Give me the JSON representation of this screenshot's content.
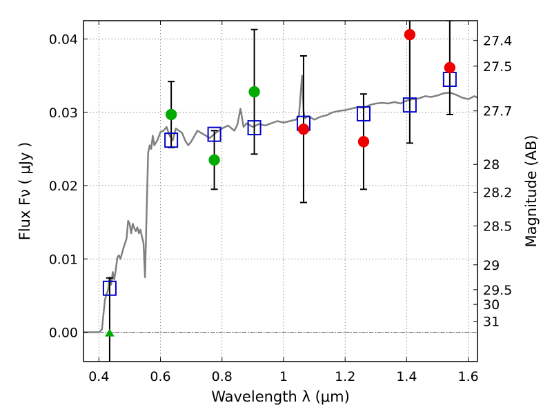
{
  "chart_data": {
    "type": "scatter",
    "title": "",
    "xlabel": "Wavelength  λ (μm)",
    "ylabel": "Flux  Fν  ( μJy )",
    "ylabel_right": "Magnitude (AB)",
    "xlim": [
      0.35,
      1.63
    ],
    "ylim": [
      -0.004,
      0.0425
    ],
    "grid": true,
    "x_ticks": [
      0.4,
      0.6,
      0.8,
      1.0,
      1.2,
      1.4,
      1.6
    ],
    "x_tick_labels": [
      "0.4",
      "0.6",
      "0.8",
      "1",
      "1.2",
      "1.4",
      "1.6"
    ],
    "y_ticks": [
      0.0,
      0.01,
      0.02,
      0.03,
      0.04
    ],
    "y_tick_labels": [
      "0.00",
      "0.01",
      "0.02",
      "0.03",
      "0.04"
    ],
    "mag_ticks": [
      {
        "label": "27.4",
        "flux": 0.0398
      },
      {
        "label": "27.5",
        "flux": 0.0363
      },
      {
        "label": "27.7",
        "flux": 0.0302
      },
      {
        "label": "28",
        "flux": 0.0229
      },
      {
        "label": "28.2",
        "flux": 0.0191
      },
      {
        "label": "28.5",
        "flux": 0.0145
      },
      {
        "label": "29",
        "flux": 0.0092
      },
      {
        "label": "29.5",
        "flux": 0.0058
      },
      {
        "label": "30",
        "flux": 0.0038
      },
      {
        "label": "31",
        "flux": 0.0015
      }
    ],
    "zero_line": 0.0,
    "sed_template": {
      "color": "#808080",
      "x": [
        0.35,
        0.4,
        0.41,
        0.415,
        0.42,
        0.43,
        0.435,
        0.44,
        0.445,
        0.45,
        0.455,
        0.46,
        0.465,
        0.47,
        0.48,
        0.49,
        0.495,
        0.5,
        0.505,
        0.51,
        0.515,
        0.52,
        0.525,
        0.53,
        0.535,
        0.54,
        0.545,
        0.55,
        0.555,
        0.56,
        0.565,
        0.57,
        0.575,
        0.58,
        0.59,
        0.6,
        0.61,
        0.62,
        0.63,
        0.64,
        0.65,
        0.66,
        0.67,
        0.68,
        0.69,
        0.7,
        0.72,
        0.74,
        0.76,
        0.78,
        0.8,
        0.82,
        0.84,
        0.85,
        0.86,
        0.87,
        0.88,
        0.9,
        0.92,
        0.94,
        0.96,
        0.98,
        1.0,
        1.02,
        1.04,
        1.05,
        1.06,
        1.065,
        1.07,
        1.08,
        1.1,
        1.12,
        1.14,
        1.16,
        1.18,
        1.2,
        1.22,
        1.24,
        1.26,
        1.28,
        1.3,
        1.32,
        1.34,
        1.36,
        1.38,
        1.4,
        1.42,
        1.44,
        1.46,
        1.48,
        1.5,
        1.52,
        1.54,
        1.56,
        1.58,
        1.6,
        1.62,
        1.63
      ],
      "y": [
        0.0,
        0.0,
        0.0004,
        0.0025,
        0.0045,
        0.0058,
        0.0075,
        0.0065,
        0.0082,
        0.0072,
        0.0085,
        0.0102,
        0.0105,
        0.01,
        0.0115,
        0.0128,
        0.0152,
        0.0148,
        0.0135,
        0.0148,
        0.0142,
        0.0138,
        0.0143,
        0.0135,
        0.014,
        0.013,
        0.0122,
        0.0075,
        0.016,
        0.0245,
        0.0255,
        0.025,
        0.0268,
        0.0255,
        0.0262,
        0.0273,
        0.0275,
        0.028,
        0.0268,
        0.0262,
        0.0278,
        0.0275,
        0.0272,
        0.0262,
        0.0255,
        0.026,
        0.0275,
        0.027,
        0.0265,
        0.0272,
        0.0278,
        0.0282,
        0.0275,
        0.0283,
        0.0305,
        0.028,
        0.0285,
        0.028,
        0.0284,
        0.0282,
        0.0285,
        0.0288,
        0.0286,
        0.0288,
        0.029,
        0.0295,
        0.035,
        0.03,
        0.0292,
        0.0295,
        0.029,
        0.0294,
        0.0296,
        0.03,
        0.0302,
        0.0303,
        0.0305,
        0.0307,
        0.0306,
        0.031,
        0.0312,
        0.0313,
        0.0312,
        0.0314,
        0.0312,
        0.0316,
        0.0318,
        0.0319,
        0.0322,
        0.0321,
        0.0323,
        0.0326,
        0.0327,
        0.0324,
        0.032,
        0.0318,
        0.0322,
        0.032
      ]
    },
    "series": [
      {
        "marker": "square-open",
        "color": "#0000cc",
        "points": [
          {
            "x": 0.435,
            "y": 0.006
          },
          {
            "x": 0.635,
            "y": 0.0262
          },
          {
            "x": 0.775,
            "y": 0.027
          },
          {
            "x": 0.905,
            "y": 0.0279
          },
          {
            "x": 1.065,
            "y": 0.0285
          },
          {
            "x": 1.26,
            "y": 0.0298
          },
          {
            "x": 1.41,
            "y": 0.031
          },
          {
            "x": 1.54,
            "y": 0.0345
          }
        ]
      },
      {
        "marker": "circle",
        "color": "#00aa00",
        "points": [
          {
            "x": 0.635,
            "y": 0.0297,
            "err": 0.0045
          },
          {
            "x": 0.775,
            "y": 0.0235,
            "err": 0.004
          },
          {
            "x": 0.905,
            "y": 0.0328,
            "err": 0.0085
          }
        ]
      },
      {
        "marker": "circle",
        "color": "#ee0000",
        "points": [
          {
            "x": 1.065,
            "y": 0.0277,
            "err": 0.01
          },
          {
            "x": 1.26,
            "y": 0.026,
            "err": 0.0065
          },
          {
            "x": 1.41,
            "y": 0.0406,
            "err": 0.0148
          },
          {
            "x": 1.54,
            "y": 0.0361,
            "err": 0.0064
          }
        ]
      },
      {
        "marker": "triangle-up",
        "color": "#00aa00",
        "points": [
          {
            "x": 0.435,
            "y": -0.0001,
            "err": 0.0075
          }
        ]
      }
    ]
  }
}
